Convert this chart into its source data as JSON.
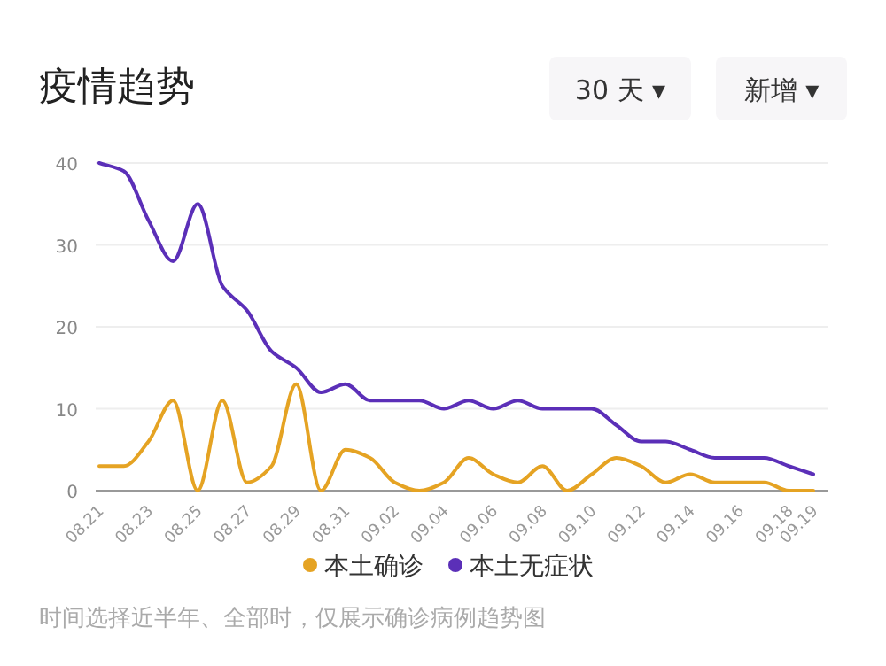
{
  "chart_data": {
    "type": "line",
    "title": "疫情趋势",
    "annotations": [
      "30 天 ▾",
      "新增 ▾",
      "时间选择近半年、全部时，仅展示确诊病例趋势图"
    ],
    "categories": [
      "08.21",
      null,
      "08.23",
      null,
      "08.25",
      null,
      "08.27",
      null,
      "08.29",
      null,
      "08.31",
      null,
      "09.02",
      null,
      "09.04",
      null,
      "09.06",
      null,
      "09.08",
      null,
      "09.10",
      null,
      "09.12",
      null,
      "09.14",
      null,
      "09.16",
      null,
      "09.18",
      "09.19"
    ],
    "series": [
      {
        "name": "本土确诊",
        "color": "#e5a323",
        "values": [
          3,
          3,
          6,
          11,
          0,
          11,
          1,
          3,
          13,
          0,
          5,
          4,
          1,
          0,
          1,
          4,
          2,
          1,
          3,
          0,
          2,
          4,
          3,
          1,
          2,
          1,
          1,
          1,
          0,
          0
        ]
      },
      {
        "name": "本土无症状",
        "color": "#5b2fb8",
        "values": [
          40,
          39,
          33,
          28,
          35,
          25,
          22,
          17,
          15,
          12,
          13,
          11,
          11,
          11,
          10,
          11,
          10,
          11,
          10,
          10,
          10,
          8,
          6,
          6,
          5,
          4,
          4,
          4,
          3,
          2
        ]
      }
    ],
    "ylim": [
      0,
      40
    ],
    "yticks": [
      0,
      10,
      20,
      30,
      40
    ],
    "grid": "y",
    "legend": "bottom"
  }
}
